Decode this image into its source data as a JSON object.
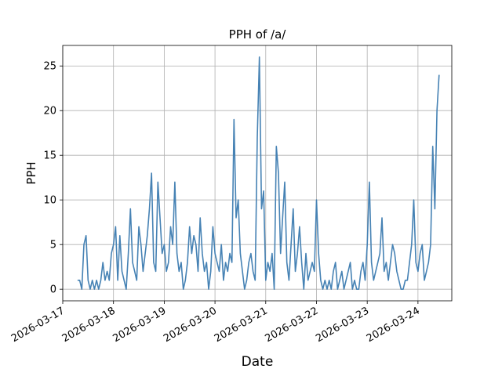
{
  "chart_data": {
    "type": "line",
    "title": "PPH of /a/",
    "xlabel": "Date",
    "ylabel": "PPH",
    "x_tick_labels": [
      "2026-03-17",
      "2026-03-18",
      "2026-03-19",
      "2026-03-20",
      "2026-03-21",
      "2026-03-22",
      "2026-03-23",
      "2026-03-24"
    ],
    "y_tick_labels": [
      "0",
      "5",
      "10",
      "15",
      "20",
      "25"
    ],
    "xlim": [
      "2026-03-17 00:00",
      "2026-03-24 16:00"
    ],
    "ylim": [
      -1.3,
      27.3
    ],
    "grid": true,
    "series": [
      {
        "color": "#4682b4",
        "x": [
          "2026-03-17 07:00",
          "2026-03-17 08:00",
          "2026-03-17 09:00",
          "2026-03-17 10:00",
          "2026-03-17 11:00",
          "2026-03-17 12:00",
          "2026-03-17 13:00",
          "2026-03-17 14:00",
          "2026-03-17 15:00",
          "2026-03-17 16:00",
          "2026-03-17 17:00",
          "2026-03-17 18:00",
          "2026-03-17 19:00",
          "2026-03-17 20:00",
          "2026-03-17 21:00",
          "2026-03-17 22:00",
          "2026-03-17 23:00",
          "2026-03-18 00:00",
          "2026-03-18 01:00",
          "2026-03-18 02:00",
          "2026-03-18 03:00",
          "2026-03-18 04:00",
          "2026-03-18 05:00",
          "2026-03-18 06:00",
          "2026-03-18 07:00",
          "2026-03-18 08:00",
          "2026-03-18 09:00",
          "2026-03-18 10:00",
          "2026-03-18 11:00",
          "2026-03-18 12:00",
          "2026-03-18 13:00",
          "2026-03-18 14:00",
          "2026-03-18 15:00",
          "2026-03-18 16:00",
          "2026-03-18 17:00",
          "2026-03-18 18:00",
          "2026-03-18 19:00",
          "2026-03-18 20:00",
          "2026-03-18 21:00",
          "2026-03-18 22:00",
          "2026-03-18 23:00",
          "2026-03-19 00:00",
          "2026-03-19 01:00",
          "2026-03-19 02:00",
          "2026-03-19 03:00",
          "2026-03-19 04:00",
          "2026-03-19 05:00",
          "2026-03-19 06:00",
          "2026-03-19 07:00",
          "2026-03-19 08:00",
          "2026-03-19 09:00",
          "2026-03-19 10:00",
          "2026-03-19 11:00",
          "2026-03-19 12:00",
          "2026-03-19 13:00",
          "2026-03-19 14:00",
          "2026-03-19 15:00",
          "2026-03-19 16:00",
          "2026-03-19 17:00",
          "2026-03-19 18:00",
          "2026-03-19 19:00",
          "2026-03-19 20:00",
          "2026-03-19 21:00",
          "2026-03-19 22:00",
          "2026-03-19 23:00",
          "2026-03-20 00:00",
          "2026-03-20 01:00",
          "2026-03-20 02:00",
          "2026-03-20 03:00",
          "2026-03-20 04:00",
          "2026-03-20 05:00",
          "2026-03-20 06:00",
          "2026-03-20 07:00",
          "2026-03-20 08:00",
          "2026-03-20 09:00",
          "2026-03-20 10:00",
          "2026-03-20 11:00",
          "2026-03-20 12:00",
          "2026-03-20 13:00",
          "2026-03-20 14:00",
          "2026-03-20 15:00",
          "2026-03-20 16:00",
          "2026-03-20 17:00",
          "2026-03-20 18:00",
          "2026-03-20 19:00",
          "2026-03-20 20:00",
          "2026-03-20 21:00",
          "2026-03-20 22:00",
          "2026-03-20 23:00",
          "2026-03-21 00:00",
          "2026-03-21 01:00",
          "2026-03-21 02:00",
          "2026-03-21 03:00",
          "2026-03-21 04:00",
          "2026-03-21 05:00",
          "2026-03-21 06:00",
          "2026-03-21 07:00",
          "2026-03-21 08:00",
          "2026-03-21 09:00",
          "2026-03-21 10:00",
          "2026-03-21 11:00",
          "2026-03-21 12:00",
          "2026-03-21 13:00",
          "2026-03-21 14:00",
          "2026-03-21 15:00",
          "2026-03-21 16:00",
          "2026-03-21 17:00",
          "2026-03-21 18:00",
          "2026-03-21 19:00",
          "2026-03-21 20:00",
          "2026-03-21 21:00",
          "2026-03-21 22:00",
          "2026-03-21 23:00",
          "2026-03-22 00:00",
          "2026-03-22 01:00",
          "2026-03-22 02:00",
          "2026-03-22 03:00",
          "2026-03-22 04:00",
          "2026-03-22 05:00",
          "2026-03-22 06:00",
          "2026-03-22 07:00",
          "2026-03-22 08:00",
          "2026-03-22 09:00",
          "2026-03-22 10:00",
          "2026-03-22 11:00",
          "2026-03-22 12:00",
          "2026-03-22 13:00",
          "2026-03-22 14:00",
          "2026-03-22 15:00",
          "2026-03-22 16:00",
          "2026-03-22 17:00",
          "2026-03-22 18:00",
          "2026-03-22 19:00",
          "2026-03-22 20:00",
          "2026-03-22 21:00",
          "2026-03-22 22:00",
          "2026-03-22 23:00",
          "2026-03-23 00:00",
          "2026-03-23 01:00",
          "2026-03-23 02:00",
          "2026-03-23 03:00",
          "2026-03-23 04:00",
          "2026-03-23 05:00",
          "2026-03-23 06:00",
          "2026-03-23 07:00",
          "2026-03-23 08:00",
          "2026-03-23 09:00",
          "2026-03-23 10:00",
          "2026-03-23 11:00",
          "2026-03-23 12:00",
          "2026-03-23 13:00",
          "2026-03-23 14:00",
          "2026-03-23 15:00",
          "2026-03-23 16:00",
          "2026-03-23 17:00",
          "2026-03-23 18:00",
          "2026-03-23 19:00",
          "2026-03-23 20:00",
          "2026-03-23 21:00",
          "2026-03-23 22:00",
          "2026-03-23 23:00",
          "2026-03-24 00:00",
          "2026-03-24 01:00",
          "2026-03-24 02:00",
          "2026-03-24 03:00",
          "2026-03-24 04:00",
          "2026-03-24 05:00",
          "2026-03-24 06:00",
          "2026-03-24 07:00",
          "2026-03-24 08:00",
          "2026-03-24 09:00",
          "2026-03-24 10:00"
        ],
        "y": [
          1,
          1,
          0,
          5,
          6,
          1,
          0,
          1,
          0,
          1,
          0,
          1,
          3,
          1,
          2,
          1,
          4,
          5,
          7,
          1,
          6,
          2,
          1,
          0,
          4,
          9,
          3,
          2,
          1,
          7,
          5,
          2,
          4,
          6,
          9,
          13,
          3,
          2,
          12,
          8,
          4,
          5,
          2,
          3,
          7,
          5,
          12,
          4,
          2,
          3,
          0,
          1,
          3,
          7,
          4,
          6,
          5,
          2,
          8,
          4,
          2,
          3,
          0,
          2,
          7,
          4,
          3,
          2,
          5,
          1,
          3,
          2,
          4,
          3,
          19,
          8,
          10,
          4,
          2,
          0,
          1,
          3,
          4,
          2,
          1,
          17,
          26,
          9,
          11,
          1,
          3,
          2,
          4,
          0,
          16,
          13,
          4,
          8,
          12,
          3,
          1,
          5,
          9,
          2,
          4,
          7,
          3,
          0,
          4,
          1,
          2,
          3,
          2,
          10,
          4,
          1,
          0,
          1,
          0,
          1,
          0,
          2,
          3,
          0,
          1,
          2,
          0,
          1,
          2,
          3,
          0,
          1,
          0,
          0,
          2,
          3,
          1,
          5,
          12,
          3,
          1,
          2,
          3,
          4,
          8,
          2,
          3,
          1,
          3,
          5,
          4,
          2,
          1,
          0,
          0,
          1,
          1,
          3,
          5,
          10,
          3,
          2,
          4,
          5,
          1,
          2,
          3,
          5,
          16,
          9,
          20,
          24
        ]
      }
    ]
  }
}
